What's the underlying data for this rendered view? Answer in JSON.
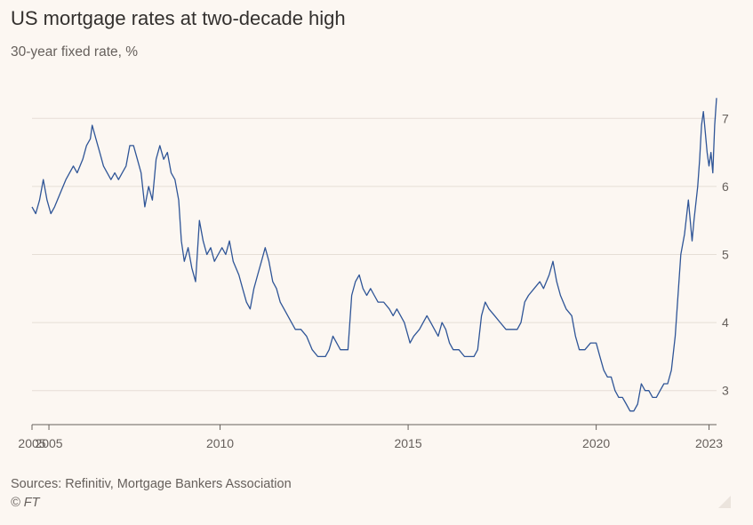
{
  "chart_data": {
    "type": "line",
    "title": "US mortgage rates at two-decade high",
    "subtitle": "30-year fixed rate, %",
    "xlabel": "",
    "ylabel": "",
    "x_range": [
      2005.0,
      2023.2
    ],
    "ylim": [
      2.5,
      7.5
    ],
    "y_ticks": [
      3,
      4,
      5,
      6,
      7
    ],
    "y_tick_labels": [
      "3",
      "4",
      "5",
      "6",
      "7"
    ],
    "y_axis_position": "right",
    "x_ticks": [
      2005.0,
      2005.45,
      2010,
      2015,
      2020,
      2023
    ],
    "x_tick_labels": [
      "2005",
      "2005",
      "2010",
      "2015",
      "2020",
      "2023"
    ],
    "grid": "horizontal",
    "series": [
      {
        "color": "#2f5597",
        "points": [
          [
            2005.0,
            5.7
          ],
          [
            2005.1,
            5.6
          ],
          [
            2005.2,
            5.8
          ],
          [
            2005.3,
            6.1
          ],
          [
            2005.4,
            5.8
          ],
          [
            2005.5,
            5.6
          ],
          [
            2005.6,
            5.7
          ],
          [
            2005.75,
            5.9
          ],
          [
            2005.9,
            6.1
          ],
          [
            2006.0,
            6.2
          ],
          [
            2006.1,
            6.3
          ],
          [
            2006.2,
            6.2
          ],
          [
            2006.35,
            6.4
          ],
          [
            2006.45,
            6.6
          ],
          [
            2006.55,
            6.7
          ],
          [
            2006.6,
            6.9
          ],
          [
            2006.7,
            6.7
          ],
          [
            2006.8,
            6.5
          ],
          [
            2006.9,
            6.3
          ],
          [
            2007.0,
            6.2
          ],
          [
            2007.1,
            6.1
          ],
          [
            2007.2,
            6.2
          ],
          [
            2007.3,
            6.1
          ],
          [
            2007.4,
            6.2
          ],
          [
            2007.5,
            6.3
          ],
          [
            2007.6,
            6.6
          ],
          [
            2007.7,
            6.6
          ],
          [
            2007.8,
            6.4
          ],
          [
            2007.9,
            6.2
          ],
          [
            2008.0,
            5.7
          ],
          [
            2008.1,
            6.0
          ],
          [
            2008.2,
            5.8
          ],
          [
            2008.3,
            6.4
          ],
          [
            2008.4,
            6.6
          ],
          [
            2008.5,
            6.4
          ],
          [
            2008.6,
            6.5
          ],
          [
            2008.7,
            6.2
          ],
          [
            2008.8,
            6.1
          ],
          [
            2008.9,
            5.8
          ],
          [
            2008.97,
            5.2
          ],
          [
            2009.05,
            4.9
          ],
          [
            2009.15,
            5.1
          ],
          [
            2009.25,
            4.8
          ],
          [
            2009.35,
            4.6
          ],
          [
            2009.45,
            5.5
          ],
          [
            2009.55,
            5.2
          ],
          [
            2009.65,
            5.0
          ],
          [
            2009.75,
            5.1
          ],
          [
            2009.85,
            4.9
          ],
          [
            2009.95,
            5.0
          ],
          [
            2010.05,
            5.1
          ],
          [
            2010.15,
            5.0
          ],
          [
            2010.25,
            5.2
          ],
          [
            2010.35,
            4.9
          ],
          [
            2010.5,
            4.7
          ],
          [
            2010.6,
            4.5
          ],
          [
            2010.7,
            4.3
          ],
          [
            2010.8,
            4.2
          ],
          [
            2010.9,
            4.5
          ],
          [
            2011.0,
            4.7
          ],
          [
            2011.1,
            4.9
          ],
          [
            2011.2,
            5.1
          ],
          [
            2011.3,
            4.9
          ],
          [
            2011.4,
            4.6
          ],
          [
            2011.5,
            4.5
          ],
          [
            2011.6,
            4.3
          ],
          [
            2011.7,
            4.2
          ],
          [
            2011.8,
            4.1
          ],
          [
            2011.9,
            4.0
          ],
          [
            2012.0,
            3.9
          ],
          [
            2012.15,
            3.9
          ],
          [
            2012.3,
            3.8
          ],
          [
            2012.45,
            3.6
          ],
          [
            2012.6,
            3.5
          ],
          [
            2012.8,
            3.5
          ],
          [
            2012.9,
            3.6
          ],
          [
            2013.0,
            3.8
          ],
          [
            2013.1,
            3.7
          ],
          [
            2013.2,
            3.6
          ],
          [
            2013.4,
            3.6
          ],
          [
            2013.5,
            4.4
          ],
          [
            2013.6,
            4.6
          ],
          [
            2013.7,
            4.7
          ],
          [
            2013.8,
            4.5
          ],
          [
            2013.9,
            4.4
          ],
          [
            2014.0,
            4.5
          ],
          [
            2014.1,
            4.4
          ],
          [
            2014.2,
            4.3
          ],
          [
            2014.35,
            4.3
          ],
          [
            2014.5,
            4.2
          ],
          [
            2014.6,
            4.1
          ],
          [
            2014.7,
            4.2
          ],
          [
            2014.8,
            4.1
          ],
          [
            2014.9,
            4.0
          ],
          [
            2015.0,
            3.8
          ],
          [
            2015.05,
            3.7
          ],
          [
            2015.15,
            3.8
          ],
          [
            2015.3,
            3.9
          ],
          [
            2015.4,
            4.0
          ],
          [
            2015.5,
            4.1
          ],
          [
            2015.6,
            4.0
          ],
          [
            2015.7,
            3.9
          ],
          [
            2015.8,
            3.8
          ],
          [
            2015.9,
            4.0
          ],
          [
            2016.0,
            3.9
          ],
          [
            2016.1,
            3.7
          ],
          [
            2016.2,
            3.6
          ],
          [
            2016.35,
            3.6
          ],
          [
            2016.5,
            3.5
          ],
          [
            2016.6,
            3.5
          ],
          [
            2016.75,
            3.5
          ],
          [
            2016.85,
            3.6
          ],
          [
            2016.95,
            4.1
          ],
          [
            2017.05,
            4.3
          ],
          [
            2017.15,
            4.2
          ],
          [
            2017.3,
            4.1
          ],
          [
            2017.45,
            4.0
          ],
          [
            2017.6,
            3.9
          ],
          [
            2017.75,
            3.9
          ],
          [
            2017.9,
            3.9
          ],
          [
            2018.0,
            4.0
          ],
          [
            2018.1,
            4.3
          ],
          [
            2018.2,
            4.4
          ],
          [
            2018.35,
            4.5
          ],
          [
            2018.5,
            4.6
          ],
          [
            2018.6,
            4.5
          ],
          [
            2018.75,
            4.7
          ],
          [
            2018.85,
            4.9
          ],
          [
            2018.95,
            4.6
          ],
          [
            2019.05,
            4.4
          ],
          [
            2019.2,
            4.2
          ],
          [
            2019.35,
            4.1
          ],
          [
            2019.45,
            3.8
          ],
          [
            2019.55,
            3.6
          ],
          [
            2019.7,
            3.6
          ],
          [
            2019.85,
            3.7
          ],
          [
            2020.0,
            3.7
          ],
          [
            2020.1,
            3.5
          ],
          [
            2020.2,
            3.3
          ],
          [
            2020.3,
            3.2
          ],
          [
            2020.4,
            3.2
          ],
          [
            2020.5,
            3.0
          ],
          [
            2020.6,
            2.9
          ],
          [
            2020.7,
            2.9
          ],
          [
            2020.8,
            2.8
          ],
          [
            2020.9,
            2.7
          ],
          [
            2021.0,
            2.7
          ],
          [
            2021.1,
            2.8
          ],
          [
            2021.2,
            3.1
          ],
          [
            2021.3,
            3.0
          ],
          [
            2021.4,
            3.0
          ],
          [
            2021.5,
            2.9
          ],
          [
            2021.6,
            2.9
          ],
          [
            2021.7,
            3.0
          ],
          [
            2021.8,
            3.1
          ],
          [
            2021.9,
            3.1
          ],
          [
            2022.0,
            3.3
          ],
          [
            2022.1,
            3.8
          ],
          [
            2022.15,
            4.2
          ],
          [
            2022.25,
            5.0
          ],
          [
            2022.35,
            5.3
          ],
          [
            2022.45,
            5.8
          ],
          [
            2022.55,
            5.2
          ],
          [
            2022.6,
            5.5
          ],
          [
            2022.7,
            6.0
          ],
          [
            2022.75,
            6.4
          ],
          [
            2022.8,
            6.9
          ],
          [
            2022.85,
            7.1
          ],
          [
            2022.9,
            6.8
          ],
          [
            2022.95,
            6.5
          ],
          [
            2023.0,
            6.3
          ],
          [
            2023.05,
            6.5
          ],
          [
            2023.1,
            6.2
          ],
          [
            2023.15,
            6.9
          ],
          [
            2023.2,
            7.3
          ]
        ]
      }
    ]
  },
  "footer": {
    "source": "Sources: Refinitiv, Mortgage Bankers Association",
    "copyright": "© FT"
  }
}
